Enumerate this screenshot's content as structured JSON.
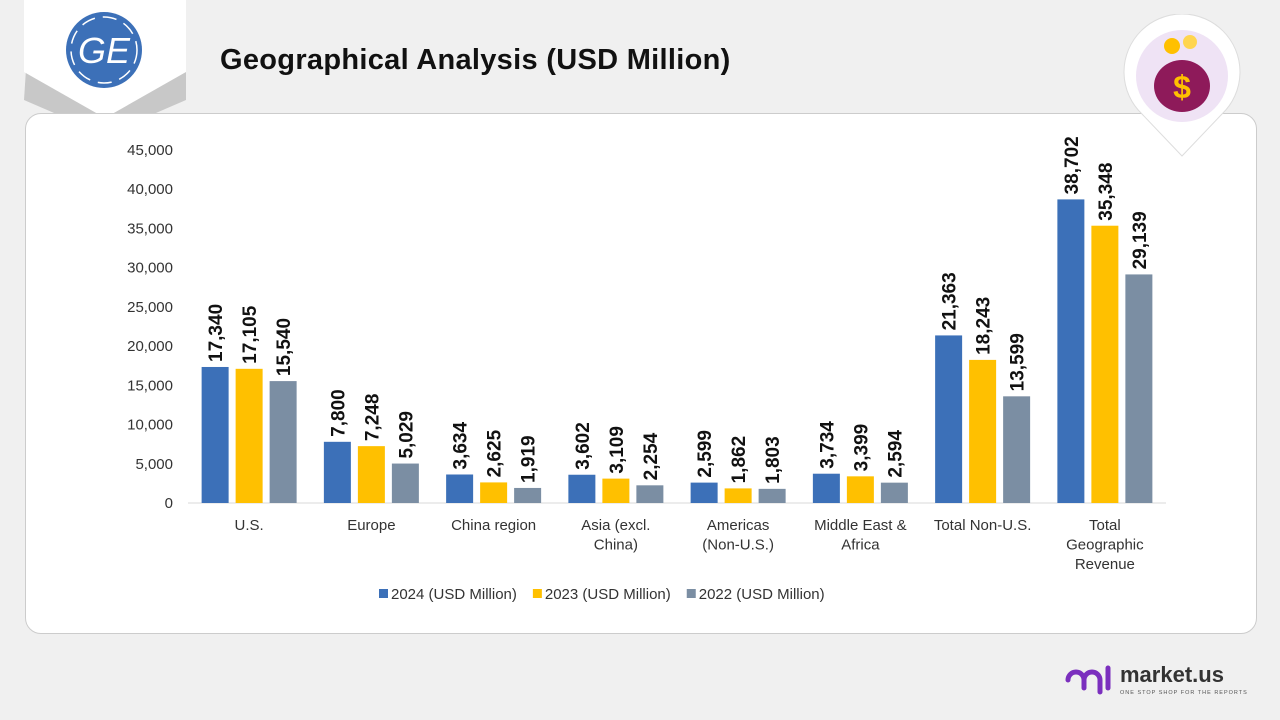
{
  "header": {
    "title": "Geographical Analysis (USD Million)",
    "logo_text": "GE"
  },
  "footer": {
    "brand": "market.us",
    "tagline": "ONE STOP SHOP FOR THE REPORTS"
  },
  "colors": {
    "2024": "#3c70b8",
    "2023": "#ffc000",
    "2022": "#7b8ea3"
  },
  "chart_data": {
    "type": "bar",
    "title": "",
    "categories": [
      [
        "U.S."
      ],
      [
        "Europe"
      ],
      [
        "China region"
      ],
      [
        "Asia (excl.",
        "China)"
      ],
      [
        "Americas",
        "(Non-U.S.)"
      ],
      [
        "Middle East &",
        "Africa"
      ],
      [
        "Total Non-U.S."
      ],
      [
        "Total",
        "Geographic",
        "Revenue"
      ]
    ],
    "series": [
      {
        "name": "2024 (USD Million)",
        "values": [
          17340,
          7800,
          3634,
          3602,
          2599,
          3734,
          21363,
          38702
        ]
      },
      {
        "name": "2023 (USD Million)",
        "values": [
          17105,
          7248,
          2625,
          3109,
          1862,
          3399,
          18243,
          35348
        ]
      },
      {
        "name": "2022 (USD Million)",
        "values": [
          15540,
          5029,
          1919,
          2254,
          1803,
          2594,
          13599,
          29139
        ]
      }
    ],
    "ylim": [
      0,
      45000
    ],
    "yticks": [
      0,
      5000,
      10000,
      15000,
      20000,
      25000,
      30000,
      35000,
      40000,
      45000
    ],
    "grid": false,
    "legend": "bottom"
  }
}
